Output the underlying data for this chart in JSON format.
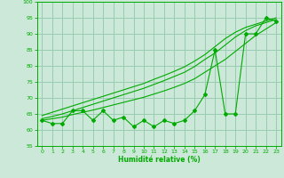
{
  "xlabel": "Humidité relative (%)",
  "background_color": "#cce8d8",
  "grid_color": "#99ccb0",
  "line_color": "#00aa00",
  "y_main": [
    63,
    62,
    62,
    66,
    66,
    63,
    66,
    63,
    64,
    61,
    63,
    61,
    63,
    62,
    63,
    66,
    71,
    85,
    65,
    65,
    90,
    90,
    95,
    94
  ],
  "y_s1": [
    63,
    63.5,
    64,
    64.8,
    65.5,
    66.2,
    67,
    67.8,
    68.6,
    69.4,
    70.2,
    71.2,
    72.2,
    73.3,
    74.5,
    76,
    78,
    80,
    82,
    84.5,
    87,
    89.5,
    91.5,
    93.5
  ],
  "y_s2": [
    63.5,
    64.2,
    65,
    66,
    67,
    68,
    69,
    70,
    71,
    72,
    73,
    74.2,
    75.4,
    76.7,
    78,
    79.8,
    82,
    84,
    86.5,
    89,
    91,
    92.5,
    93.5,
    94.5
  ],
  "y_s3": [
    64.5,
    65.5,
    66.5,
    67.5,
    68.5,
    69.5,
    70.5,
    71.5,
    72.5,
    73.5,
    74.5,
    75.8,
    77,
    78.3,
    79.7,
    81.5,
    83.5,
    86,
    88.5,
    90.5,
    92,
    93,
    94,
    95
  ],
  "ylim": [
    55,
    100
  ],
  "xlim": [
    -0.5,
    23.5
  ],
  "yticks": [
    55,
    60,
    65,
    70,
    75,
    80,
    85,
    90,
    95,
    100
  ],
  "xticks": [
    0,
    1,
    2,
    3,
    4,
    5,
    6,
    7,
    8,
    9,
    10,
    11,
    12,
    13,
    14,
    15,
    16,
    17,
    18,
    19,
    20,
    21,
    22,
    23
  ]
}
